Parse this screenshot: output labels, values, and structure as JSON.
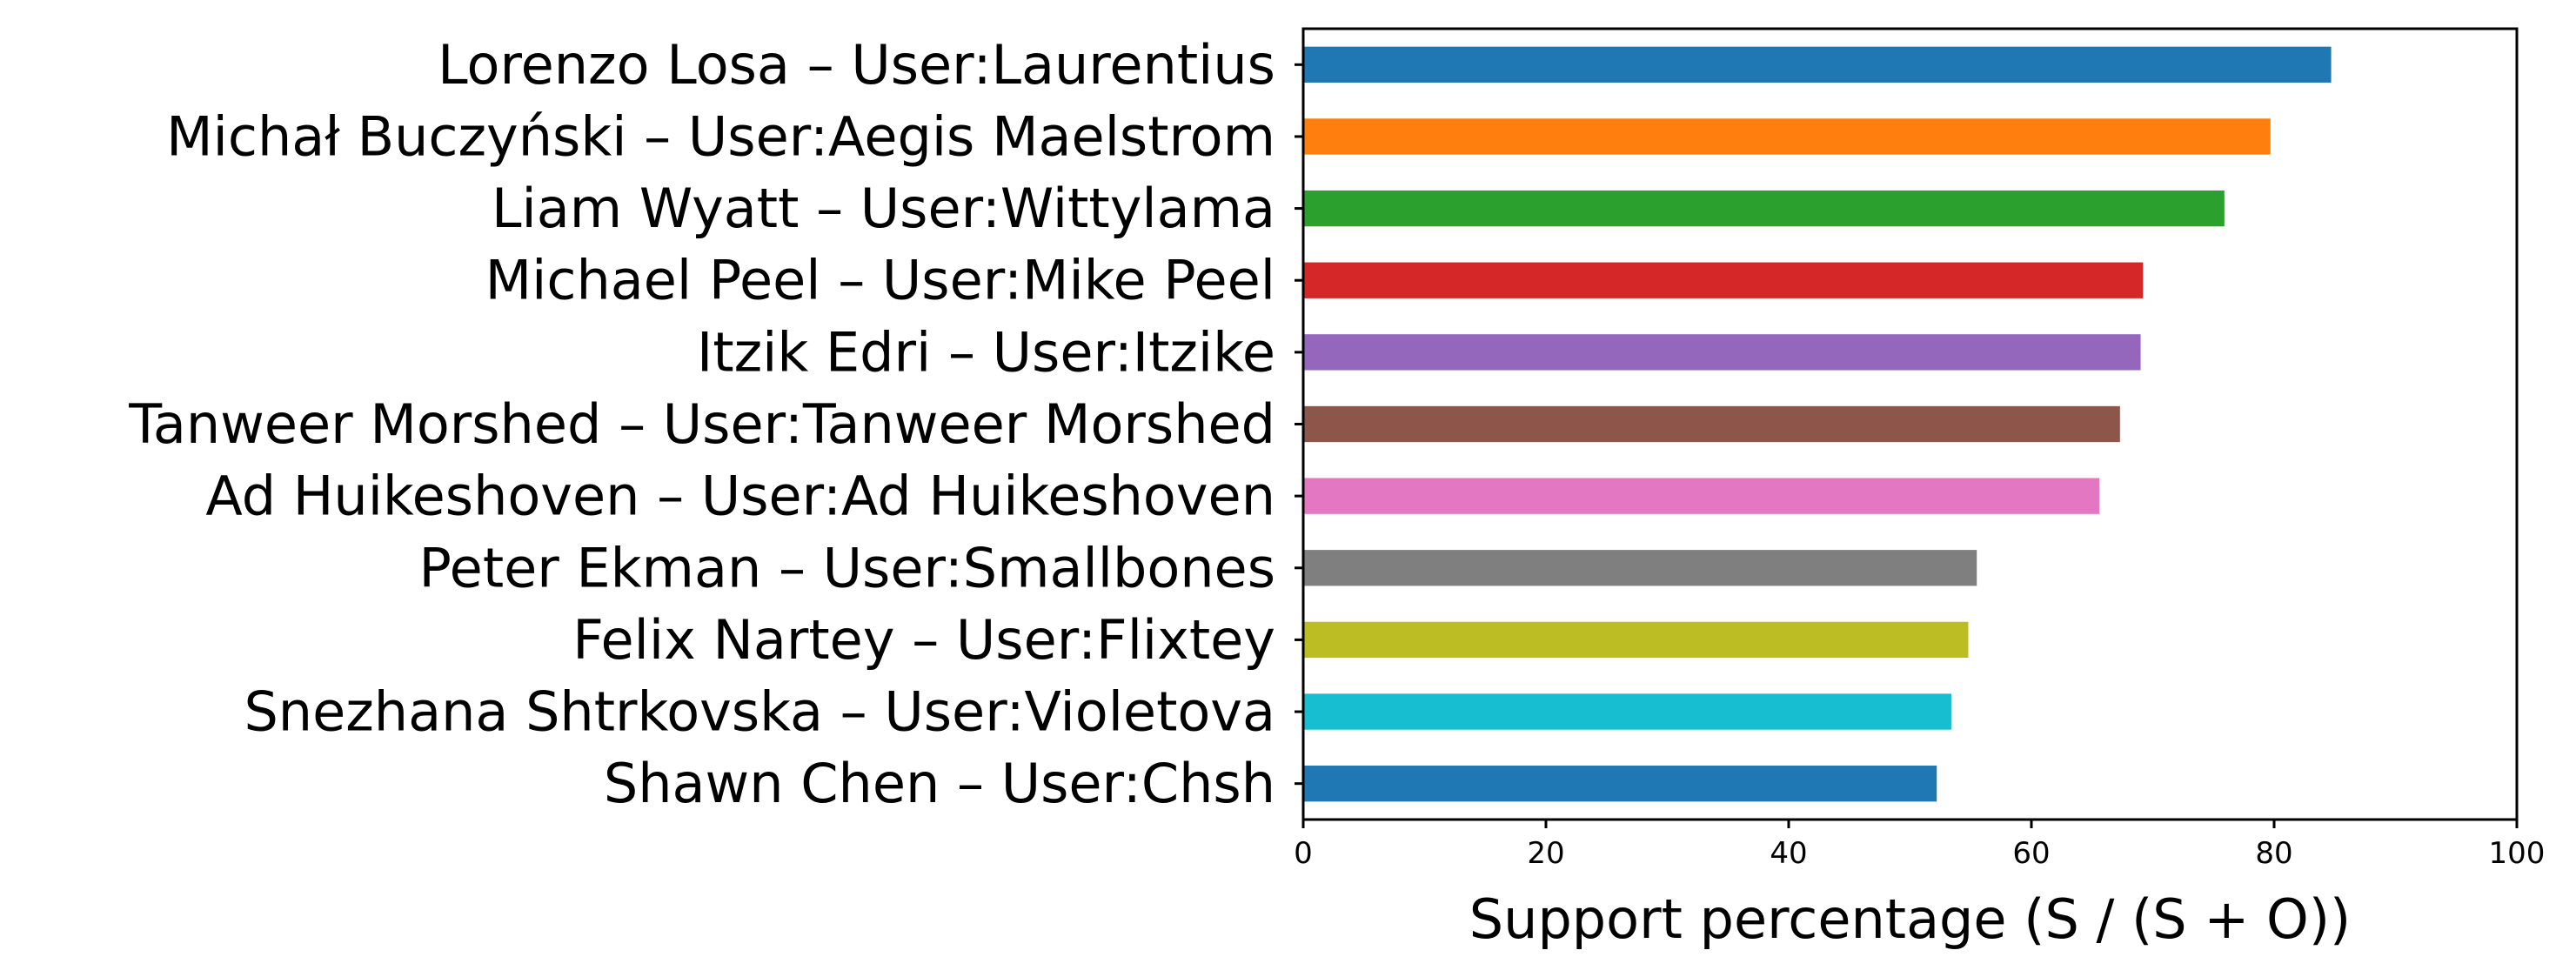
{
  "chart_data": {
    "type": "bar",
    "orientation": "horizontal",
    "categories": [
      "Lorenzo Losa – User:Laurentius",
      "Michał Buczyński – User:Aegis Maelstrom",
      "Liam Wyatt – User:Wittylama",
      "Michael Peel – User:Mike Peel",
      "Itzik Edri – User:Itzike",
      "Tanweer Morshed – User:Tanweer Morshed",
      "Ad Huikeshoven – User:Ad Huikeshoven",
      "Peter Ekman – User:Smallbones",
      "Felix Nartey – User:Flixtey",
      "Snezhana Shtrkovska – User:Violetova",
      "Shawn Chen – User:Chsh"
    ],
    "values": [
      84.7,
      79.7,
      75.9,
      69.2,
      69.0,
      67.3,
      65.6,
      55.5,
      54.8,
      53.4,
      52.2
    ],
    "colors": [
      "#1f77b4",
      "#ff7f0e",
      "#2ca02c",
      "#d62728",
      "#9467bd",
      "#8c564b",
      "#e377c2",
      "#7f7f7f",
      "#bcbd22",
      "#17becf",
      "#1f77b4"
    ],
    "title": "",
    "xlabel": "Support percentage (S / (S + O))",
    "ylabel": "",
    "xlim": [
      0,
      100
    ],
    "xticks": [
      "0",
      "20",
      "40",
      "60",
      "80",
      "100"
    ],
    "grid": false,
    "legend": "none"
  }
}
